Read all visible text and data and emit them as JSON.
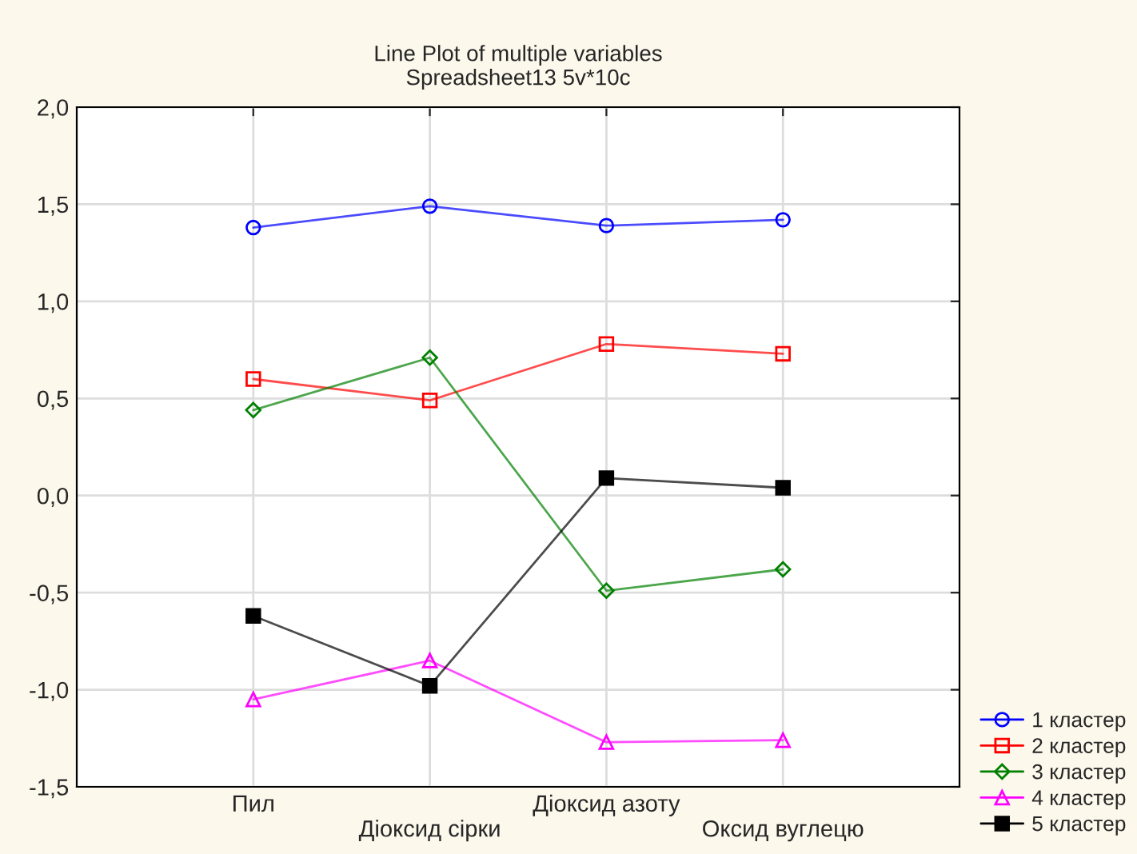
{
  "chart_data": {
    "type": "line",
    "title": "Line Plot of multiple variables",
    "subtitle": "Spreadsheet13 5v*10c",
    "categories": [
      "Пил",
      "Діоксид сірки",
      "Діоксид азоту",
      "Оксид вуглецю"
    ],
    "series": [
      {
        "name": "1 кластер",
        "color": "#0000ff",
        "marker": "circle",
        "values": [
          1.38,
          1.49,
          1.39,
          1.42
        ]
      },
      {
        "name": "2 кластер",
        "color": "#ff0000",
        "marker": "square",
        "values": [
          0.6,
          0.49,
          0.78,
          0.73
        ]
      },
      {
        "name": "3 кластер",
        "color": "#008000",
        "marker": "diamond",
        "values": [
          0.44,
          0.71,
          -0.49,
          -0.38
        ]
      },
      {
        "name": "4 кластер",
        "color": "#ff00ff",
        "marker": "triangle",
        "values": [
          -1.05,
          -0.85,
          -1.27,
          -1.26
        ]
      },
      {
        "name": "5 кластер",
        "color": "#000000",
        "marker": "square",
        "values": [
          -0.62,
          -0.98,
          0.09,
          0.04
        ]
      }
    ],
    "ylim": [
      -1.5,
      2.0
    ],
    "yticks": [
      {
        "value": -1.5,
        "label": "-1,5"
      },
      {
        "value": -1.0,
        "label": "-1,0"
      },
      {
        "value": -0.5,
        "label": "-0,5"
      },
      {
        "value": 0.0,
        "label": "0,0"
      },
      {
        "value": 0.5,
        "label": "0,5"
      },
      {
        "value": 1.0,
        "label": "1,0"
      },
      {
        "value": 1.5,
        "label": "1,5"
      },
      {
        "value": 2.0,
        "label": "2,0"
      }
    ],
    "grid": true,
    "legend": "bottom right"
  }
}
